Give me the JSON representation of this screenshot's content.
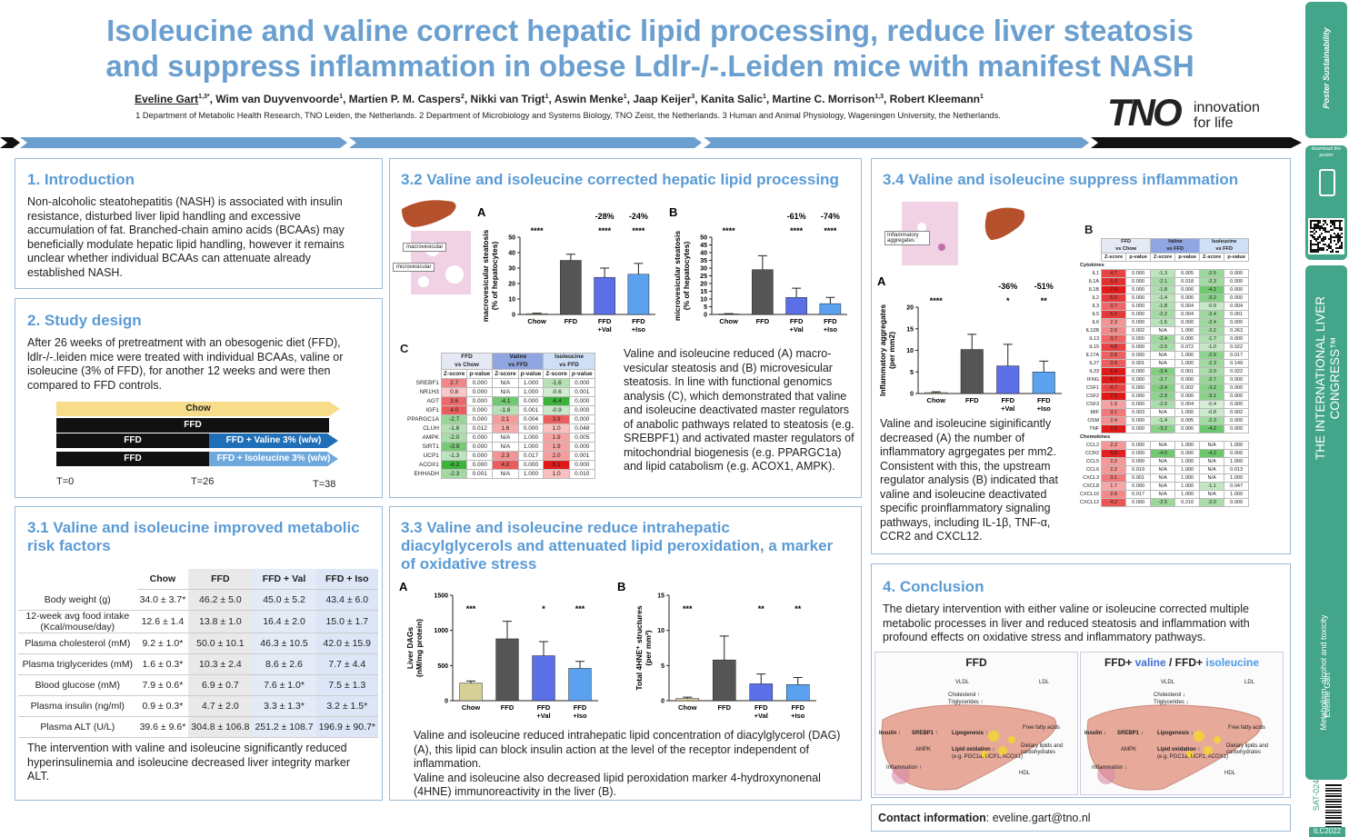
{
  "header": {
    "title_lines": [
      "Isoleucine and valine correct hepatic lipid processing, reduce liver steatosis",
      "and suppress inflammation in obese Ldlr-/-.Leiden mice with manifest NASH"
    ],
    "authors": [
      {
        "name": "Eveline Gart",
        "sup": "1,3*"
      },
      {
        "name": "Wim van Duyvenvoorde",
        "sup": "1"
      },
      {
        "name": "Martien P. M. Caspers",
        "sup": "2"
      },
      {
        "name": "Nikki van Trigt",
        "sup": "1"
      },
      {
        "name": "Aswin Menke",
        "sup": "1"
      },
      {
        "name": "Jaap Keijer",
        "sup": "3"
      },
      {
        "name": "Kanita Salic",
        "sup": "1"
      },
      {
        "name": "Martine C. Morrison",
        "sup": "1,3"
      },
      {
        "name": "Robert Kleemann",
        "sup": "1"
      }
    ],
    "affiliations": "1 Department of Metabolic Health Research, TNO Leiden, the Netherlands. 2 Department of Microbiology and Systems Biology, TNO Zeist, the Netherlands. 3 Human and Animal Physiology, Wageningen University, the Netherlands.",
    "logo": {
      "word": "TNO",
      "tagline": [
        "innovation",
        "for life"
      ]
    }
  },
  "sidebar": {
    "badge": "Poster Sustainability",
    "scan": "Scan to download the poster",
    "congress": "THE INTERNATIONAL LIVER CONGRESS™",
    "topic": "Metabolism, alcohol and toxicity",
    "presenter": "Eveline Gart",
    "code": "SAT-024",
    "event": "ILC2022"
  },
  "intro": {
    "heading": "1. Introduction",
    "text": "Non-alcoholic steatohepatitis (NASH) is associated with insulin resistance, disturbed liver lipid handling and excessive accumulation of fat. Branched-chain amino acids (BCAAs) may beneficially modulate hepatic lipid handling, however it remains unclear whether individual BCAAs can attenuate already established NASH."
  },
  "design": {
    "heading": "2. Study design",
    "text": "After 26 weeks of pretreatment with an obesogenic diet (FFD), ldlr-/-.leiden mice were treated with individual BCAAs, valine or isoleucine (3% of FFD), for another 12 weeks and were then compared to FFD controls.",
    "timeline": {
      "bars": [
        "Chow",
        "FFD",
        "FFD",
        "FFD + Valine 3% (w/w)",
        "FFD",
        "FFD + Isoleucine 3% (w/w)"
      ],
      "times": [
        "T=0",
        "T=26",
        "T=38"
      ]
    }
  },
  "risk": {
    "heading": "3.1 Valine and isoleucine improved metabolic risk factors",
    "table": {
      "columns": [
        "Chow",
        "FFD",
        "FFD + Val",
        "FFD + Iso"
      ],
      "rows": [
        [
          "Body weight (g)",
          "34.0 ± 3.7*",
          "46.2 ± 5.0",
          "45.0 ± 5.2",
          "43.4 ± 6.0"
        ],
        [
          "12-week avg food intake (Kcal/mouse/day)",
          "12.6 ± 1.4",
          "13.8 ± 1.0",
          "16.4 ± 2.0",
          "15.0 ± 1.7"
        ],
        [
          "Plasma cholesterol (mM)",
          "9.2 ± 1.0*",
          "50.0 ± 10.1",
          "46.3 ± 10.5",
          "42.0 ± 15.9"
        ],
        [
          "Plasma triglycerides (mM)",
          "1.6 ± 0.3*",
          "10.3 ± 2.4",
          "8.6 ± 2.6",
          "7.7 ± 4.4"
        ],
        [
          "Blood glucose (mM)",
          "7.9 ± 0.6*",
          "6.9 ± 0.7",
          "7.6 ± 1.0*",
          "7.5 ± 1.3"
        ],
        [
          "Plasma insulin (ng/ml)",
          "0.9 ± 0.3*",
          "4.7 ± 2.0",
          "3.3 ± 1.3*",
          "3.2 ± 1.5*"
        ],
        [
          "Plasma ALT (U/L)",
          "39.6 ± 9.6*",
          "304.8 ± 106.8",
          "251.2 ± 108.7",
          "196.9 ± 90.7*"
        ]
      ]
    },
    "text": "The intervention with valine and isoleucine significantly reduced hyperinsulinemia and isoleucine decreased liver integrity marker ALT."
  },
  "lipid": {
    "heading": "3.2 Valine and isoleucine corrected hepatic lipid processing",
    "image_labels": [
      "macrovesicular",
      "microvesicular"
    ],
    "chart_a": {
      "type": "bar",
      "letter": "A",
      "ylabel": [
        "macrovesicular steatosis",
        "(% of hepatocytes)"
      ],
      "categories": [
        "Chow",
        "FFD",
        "FFD\n+Val",
        "FFD\n+Iso"
      ],
      "values": [
        0.5,
        35,
        24,
        26
      ],
      "errors": [
        0.3,
        4,
        6,
        7
      ],
      "colors": [
        "#d6cf96",
        "#555555",
        "#5b6fe6",
        "#5aa2f0"
      ],
      "ylim": [
        0,
        50
      ],
      "yticks": [
        0,
        10,
        20,
        30,
        40,
        50
      ],
      "stars": [
        "****",
        null,
        "****",
        "****"
      ],
      "changes": [
        null,
        null,
        "-28%",
        "-24%"
      ]
    },
    "chart_b": {
      "type": "bar",
      "letter": "B",
      "ylabel": [
        "microvesicular steatosis",
        "(% of hepatocytes)"
      ],
      "categories": [
        "Chow",
        "FFD",
        "FFD\n+Val",
        "FFD\n+Iso"
      ],
      "values": [
        0.3,
        29,
        11,
        7
      ],
      "errors": [
        0.2,
        9,
        6,
        4
      ],
      "colors": [
        "#d6cf96",
        "#555555",
        "#5b6fe6",
        "#5aa2f0"
      ],
      "ylim": [
        0,
        50
      ],
      "yticks": [
        0,
        5,
        10,
        15,
        20,
        25,
        30,
        35,
        40,
        45,
        50
      ],
      "stars": [
        "****",
        null,
        "****",
        "****"
      ],
      "changes": [
        null,
        null,
        "-61%",
        "-74%"
      ]
    },
    "table_c": {
      "letter": "C",
      "groups": [
        [
          "FFD",
          "vs Chow"
        ],
        [
          "Valine",
          "vs FFD"
        ],
        [
          "Isoleucine",
          "vs FFD"
        ]
      ],
      "sub": [
        "Z-score",
        "p-value"
      ],
      "rows": [
        [
          "SREBF1",
          "2.7",
          "0.000",
          "N/A",
          "1.000",
          "-1.6",
          "0.000"
        ],
        [
          "NR1H3",
          "0.8",
          "0.000",
          "N/A",
          "1.000",
          "-0.6",
          "0.001"
        ],
        [
          "AGT",
          "3.6",
          "0.000",
          "-4.1",
          "0.000",
          "-6.4",
          "0.000"
        ],
        [
          "IGF1",
          "4.0",
          "0.000",
          "-1.6",
          "0.001",
          "-0.9",
          "0.000"
        ],
        [
          "PPARGC1A",
          "-2.7",
          "0.000",
          "2.1",
          "0.004",
          "3.9",
          "0.000"
        ],
        [
          "CLUH",
          "-1.6",
          "0.012",
          "1.6",
          "0.000",
          "1.0",
          "0.048"
        ],
        [
          "AMPK",
          "-2.0",
          "0.000",
          "N/A",
          "1.000",
          "1.9",
          "0.005"
        ],
        [
          "SIRT1",
          "-3.9",
          "0.000",
          "N/A",
          "1.000",
          "1.9",
          "0.000"
        ],
        [
          "UCP1",
          "-1.3",
          "0.000",
          "2.3",
          "0.017",
          "2.0",
          "0.001"
        ],
        [
          "ACOX1",
          "-6.2",
          "0.000",
          "4.0",
          "0.000",
          "6.1",
          "0.000"
        ],
        [
          "EHHADH",
          "-2.3",
          "0.001",
          "N/A",
          "1.000",
          "1.0",
          "0.010"
        ]
      ]
    },
    "text": "Valine and isoleucine reduced (A) macro-vesicular steatosis and (B) microvesicular steatosis. In line with functional genomics analysis (C), which demonstrated that valine and isoleucine deactivated master regulators of anabolic pathways related to steatosis (e.g. SREBPF1) and activated master regulators of mitochondrial biogenesis (e.g. PPARGC1a) and lipid catabolism (e.g. ACOX1, AMPK)."
  },
  "dag": {
    "heading": "3.3 Valine and isoleucine reduce intrahepatic diacylglycerols and attenuated lipid peroxidation, a marker of oxidative stress",
    "chart_a": {
      "type": "bar",
      "letter": "A",
      "ylabel": [
        "Liver DAGs",
        "(nM/mg protein)"
      ],
      "categories": [
        "Chow",
        "FFD",
        "FFD\n+Val",
        "FFD\n+Iso"
      ],
      "values": [
        250,
        880,
        640,
        460
      ],
      "errors": [
        30,
        250,
        200,
        100
      ],
      "colors": [
        "#d6cf96",
        "#555555",
        "#5b6fe6",
        "#5aa2f0"
      ],
      "ylim": [
        0,
        1500
      ],
      "yticks": [
        0,
        500,
        1000,
        1500
      ],
      "stars": [
        "***",
        null,
        "*",
        "***"
      ],
      "changes": [
        null,
        null,
        null,
        null
      ]
    },
    "chart_b": {
      "type": "bar",
      "letter": "B",
      "ylabel": [
        "Total 4HNE⁺ structures",
        "(per mm²)"
      ],
      "categories": [
        "Chow",
        "FFD",
        "FFD\n+Val",
        "FFD\n+Iso"
      ],
      "values": [
        0.3,
        5.8,
        2.4,
        2.3
      ],
      "errors": [
        0.2,
        3.4,
        1.4,
        1
      ],
      "colors": [
        "#d6cf96",
        "#555555",
        "#5b6fe6",
        "#5aa2f0"
      ],
      "ylim": [
        0,
        15
      ],
      "yticks": [
        0,
        5,
        10,
        15
      ],
      "stars": [
        "***",
        null,
        "**",
        "**"
      ],
      "changes": [
        null,
        null,
        null,
        null
      ]
    },
    "text": "Valine and isoleucine reduced intrahepatic lipid concentration of diacylglycerol (DAG) (A), this lipid can block insulin action at the level of the receptor independent of inflammation.\nValine and isoleucine also decreased lipid peroxidation marker 4-hydroxynonenal (4HNE) immunoreactivity in the liver (B)."
  },
  "inflam": {
    "heading": "3.4 Valine and isoleucine suppress inflammation",
    "image_label": "Inflammatory aggregates",
    "chart_a": {
      "type": "bar",
      "letter": "A",
      "ylabel": [
        "Inflammatory aggregates",
        "(per mm2)"
      ],
      "categories": [
        "Chow",
        "FFD",
        "FFD\n+Val",
        "FFD\n+Iso"
      ],
      "values": [
        0.2,
        10.2,
        6.4,
        5
      ],
      "errors": [
        0.2,
        3.5,
        5,
        2.5
      ],
      "colors": [
        "#d6cf96",
        "#555555",
        "#5b6fe6",
        "#5aa2f0"
      ],
      "ylim": [
        0,
        20
      ],
      "yticks": [
        0,
        5,
        10,
        15,
        20
      ],
      "stars": [
        "****",
        null,
        "*",
        "**"
      ],
      "changes": [
        null,
        null,
        "-36%",
        "-51%"
      ]
    },
    "table_b": {
      "letter": "B",
      "groups": [
        [
          "FFD",
          "vs Chow"
        ],
        [
          "Valine",
          "vs FFD"
        ],
        [
          "Isoleucine",
          "vs FFD"
        ]
      ],
      "sub": [
        "Z-score",
        "p-value"
      ],
      "sections": [
        {
          "name": "Cytokines",
          "rows": [
            [
              "IL1",
              "4.7",
              "0.000",
              "-1.3",
              "0.005",
              "-2.5",
              "0.000"
            ],
            [
              "IL1A",
              "5.3",
              "0.000",
              "-2.1",
              "0.018",
              "-2.3",
              "0.000"
            ],
            [
              "IL1B",
              "7.0",
              "0.000",
              "-1.8",
              "0.000",
              "-4.1",
              "0.000"
            ],
            [
              "IL2",
              "5.0",
              "0.000",
              "-1.4",
              "0.000",
              "-3.2",
              "0.000"
            ],
            [
              "IL3",
              "3.7",
              "0.000",
              "-1.8",
              "0.004",
              "-0.9",
              "0.004"
            ],
            [
              "IL5",
              "5.0",
              "0.000",
              "-2.2",
              "0.004",
              "-2.4",
              "0.001"
            ],
            [
              "IL6",
              "2.3",
              "0.000",
              "-1.5",
              "0.000",
              "-2.4",
              "0.000"
            ],
            [
              "IL12B",
              "2.6",
              "0.002",
              "N/A",
              "1.000",
              "-2.2",
              "0.263"
            ],
            [
              "IL13",
              "3.7",
              "0.000",
              "-2.4",
              "0.000",
              "-1.7",
              "0.000"
            ],
            [
              "IL15",
              "4.8",
              "0.000",
              "-2.0",
              "0.072",
              "-1.0",
              "0.022"
            ],
            [
              "IL17A",
              "3.8",
              "0.000",
              "N/A",
              "1.000",
              "-2.9",
              "0.017"
            ],
            [
              "IL27",
              "3.9",
              "0.001",
              "N/A",
              "1.000",
              "-2.3",
              "0.149"
            ],
            [
              "IL33",
              "6.4",
              "0.000",
              "-3.4",
              "0.001",
              "-2.0",
              "0.022"
            ],
            [
              "IFNG",
              "6.7",
              "0.000",
              "-2.7",
              "0.000",
              "-2.7",
              "0.000"
            ],
            [
              "CSF1",
              "4.7",
              "0.000",
              "-3.4",
              "0.002",
              "-3.2",
              "0.000"
            ],
            [
              "CSF2",
              "7.5",
              "0.000",
              "-2.9",
              "0.000",
              "-3.1",
              "0.000"
            ],
            [
              "CSF3",
              "1.9",
              "0.000",
              "-2.0",
              "0.004",
              "-0.4",
              "0.000"
            ],
            [
              "MIF",
              "3.1",
              "0.003",
              "N/A",
              "1.000",
              "-0.8",
              "0.002"
            ],
            [
              "OSM",
              "2.4",
              "0.000",
              "-1.4",
              "0.005",
              "-2.3",
              "0.000"
            ],
            [
              "TNF",
              "7.6",
              "0.000",
              "-3.2",
              "0.000",
              "-4.2",
              "0.000"
            ]
          ]
        },
        {
          "name": "Chemokines",
          "rows": [
            [
              "CCL2",
              "2.2",
              "0.000",
              "N/A",
              "1.000",
              "N/A",
              "1.000"
            ],
            [
              "CCR2",
              "5.8",
              "0.000",
              "-4.0",
              "0.000",
              "-4.2",
              "0.000"
            ],
            [
              "CCL5",
              "2.2",
              "0.000",
              "N/A",
              "1.000",
              "N/A",
              "1.000"
            ],
            [
              "CCL6",
              "2.2",
              "0.019",
              "N/A",
              "1.000",
              "N/A",
              "0.013"
            ],
            [
              "CXCL3",
              "3.1",
              "0.001",
              "N/A",
              "1.000",
              "N/A",
              "1.000"
            ],
            [
              "CXCL8",
              "1.7",
              "0.000",
              "N/A",
              "1.000",
              "-1.1",
              "0.047"
            ],
            [
              "CXCL10",
              "2.6",
              "0.017",
              "N/A",
              "1.000",
              "N/A",
              "1.000"
            ],
            [
              "CXCL12",
              "4.2",
              "0.000",
              "-2.5",
              "0.210",
              "-2.0",
              "0.000"
            ]
          ]
        }
      ]
    },
    "text": "Valine and isoleucine siginificantly decreased (A) the number of inflammatory agrgegates per mm2. Consistent with this, the upstream regulator analysis (B) indicated that valine and isoleucine deactivated specific proinflammatory signaling pathways, including IL-1β, TNF-α, CCR2 and CXCL12."
  },
  "conclusion": {
    "heading": "4. Conclusion",
    "text": "The dietary intervention with either valine or isoleucine corrected multiple metabolic processes in liver and reduced steatosis and inflammation with profound effects on oxidative stress and inflammatory pathways.",
    "figure": {
      "left": {
        "title": [
          "FFD"
        ],
        "labels": [
          "VLDL",
          "Cholesterol ↑",
          "Triglycerides ↑",
          "LDL",
          "Insulin ↑",
          "SREBP1 ↑",
          "Lipogenesis ↑",
          "Free fatty acids",
          "AMPK",
          "Lipid oxidation ↓",
          "(e.g. PGC1a, UCP1, ACOX1)",
          "Dietary lipids and carbohydrates",
          "Inflammation ↑",
          "HDL"
        ]
      },
      "right": {
        "title": [
          "FFD+",
          "valine",
          "/ FFD+",
          "isoleucine"
        ],
        "labels": [
          "VLDL",
          "Cholesterol ↓",
          "Triglycerides ↓",
          "LDL",
          "Insulin ↓",
          "SREBP1 ↓",
          "Lipogenesis ↓",
          "Free fatty acids",
          "AMPK",
          "Lipid oxidation ↑",
          "(e.g. PGC1a, UCP1, ACOX1)",
          "Dietary lipids and carbohydrates",
          "Inflammation ↓",
          "HDL"
        ]
      }
    }
  },
  "contact": {
    "label": "Contact information",
    "email": ": eveline.gart@tno.nl"
  }
}
